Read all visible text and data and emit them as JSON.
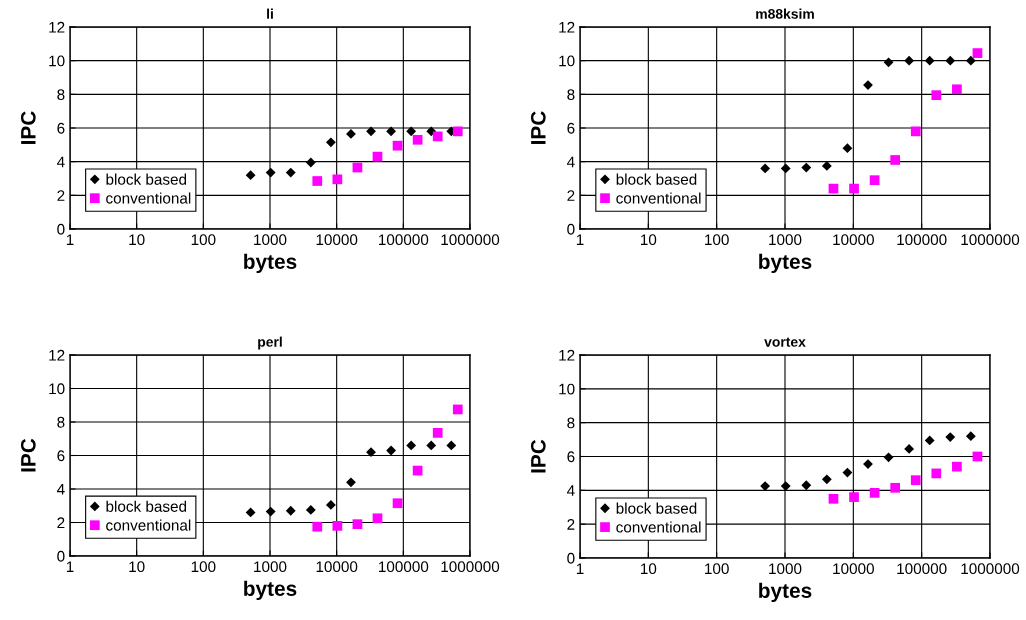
{
  "chart_data": [
    {
      "type": "scatter",
      "title": "li",
      "xlabel": "bytes",
      "ylabel": "IPC",
      "log": "x",
      "grid": true,
      "legend": "bottom left",
      "xlim": [
        1,
        1000000
      ],
      "xticks": [
        1,
        10,
        100,
        1000,
        10000,
        100000,
        1000000
      ],
      "ylim": [
        0,
        12
      ],
      "yticks": [
        0,
        2,
        4,
        6,
        8,
        10,
        12
      ],
      "series": [
        {
          "name": "block based",
          "color": "#000000",
          "marker": "diamond",
          "x": [
            512,
            1024,
            2048,
            4096,
            8192,
            16384,
            32768,
            65536,
            131072,
            262144,
            524288
          ],
          "values": [
            3.2,
            3.35,
            3.35,
            3.95,
            5.15,
            5.65,
            5.8,
            5.8,
            5.8,
            5.8,
            5.8
          ]
        },
        {
          "name": "conventional",
          "color": "#ff00ff",
          "marker": "square",
          "x": [
            5120,
            10240,
            20480,
            40960,
            81920,
            163840,
            327680,
            655360
          ],
          "values": [
            2.85,
            2.95,
            3.65,
            4.3,
            4.95,
            5.3,
            5.5,
            5.8
          ]
        }
      ]
    },
    {
      "type": "scatter",
      "title": "m88ksim",
      "xlabel": "bytes",
      "ylabel": "IPC",
      "log": "x",
      "grid": true,
      "legend": "bottom left",
      "xlim": [
        1,
        1000000
      ],
      "xticks": [
        1,
        10,
        100,
        1000,
        10000,
        100000,
        1000000
      ],
      "ylim": [
        0,
        12
      ],
      "yticks": [
        0,
        2,
        4,
        6,
        8,
        10,
        12
      ],
      "series": [
        {
          "name": "block based",
          "color": "#000000",
          "marker": "diamond",
          "x": [
            512,
            1024,
            2048,
            4096,
            8192,
            16384,
            32768,
            65536,
            131072,
            262144,
            524288
          ],
          "values": [
            3.6,
            3.6,
            3.65,
            3.75,
            4.8,
            8.55,
            9.9,
            10,
            10,
            10,
            10
          ]
        },
        {
          "name": "conventional",
          "color": "#ff00ff",
          "marker": "square",
          "x": [
            5120,
            10240,
            20480,
            40960,
            81920,
            163840,
            327680,
            655360
          ],
          "values": [
            2.4,
            2.4,
            2.9,
            4.1,
            5.8,
            7.95,
            8.3,
            10.45
          ]
        }
      ]
    },
    {
      "type": "scatter",
      "title": "perl",
      "xlabel": "bytes",
      "ylabel": "IPC",
      "log": "x",
      "grid": true,
      "legend": "bottom left",
      "xlim": [
        1,
        1000000
      ],
      "xticks": [
        1,
        10,
        100,
        1000,
        10000,
        100000,
        1000000
      ],
      "ylim": [
        0,
        12
      ],
      "yticks": [
        0,
        2,
        4,
        6,
        8,
        10,
        12
      ],
      "series": [
        {
          "name": "block based",
          "color": "#000000",
          "marker": "diamond",
          "x": [
            512,
            1024,
            2048,
            4096,
            8192,
            16384,
            32768,
            65536,
            131072,
            262144,
            524288
          ],
          "values": [
            2.6,
            2.65,
            2.7,
            2.75,
            3.05,
            4.4,
            6.2,
            6.3,
            6.6,
            6.6,
            6.6
          ]
        },
        {
          "name": "conventional",
          "color": "#ff00ff",
          "marker": "square",
          "x": [
            5120,
            10240,
            20480,
            40960,
            81920,
            163840,
            327680,
            655360
          ],
          "values": [
            1.75,
            1.8,
            1.9,
            2.25,
            3.15,
            5.1,
            7.35,
            8.75
          ]
        }
      ]
    },
    {
      "type": "scatter",
      "title": "vortex",
      "xlabel": "bytes",
      "ylabel": "IPC",
      "log": "x",
      "grid": true,
      "legend": "bottom left",
      "xlim": [
        1,
        1000000
      ],
      "xticks": [
        1,
        10,
        100,
        1000,
        10000,
        100000,
        1000000
      ],
      "ylim": [
        0,
        12
      ],
      "yticks": [
        0,
        2,
        4,
        6,
        8,
        10,
        12
      ],
      "series": [
        {
          "name": "block based",
          "color": "#000000",
          "marker": "diamond",
          "x": [
            512,
            1024,
            2048,
            4096,
            8192,
            16384,
            32768,
            65536,
            131072,
            262144,
            524288
          ],
          "values": [
            4.25,
            4.25,
            4.3,
            4.65,
            5.05,
            5.55,
            5.95,
            6.45,
            6.95,
            7.15,
            7.2
          ]
        },
        {
          "name": "conventional",
          "color": "#ff00ff",
          "marker": "square",
          "x": [
            5120,
            10240,
            20480,
            40960,
            81920,
            163840,
            327680,
            655360
          ],
          "values": [
            3.5,
            3.6,
            3.85,
            4.15,
            4.6,
            5.0,
            5.4,
            6.0
          ]
        }
      ]
    }
  ]
}
